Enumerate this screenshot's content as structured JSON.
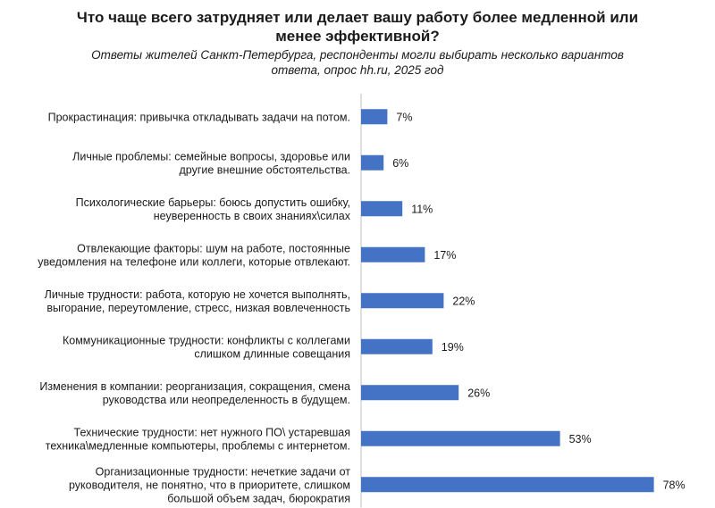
{
  "title_lines": [
    "Что чаще всего затрудняет или делает вашу работу более медленной или",
    "менее эффективной?"
  ],
  "subtitle_lines": [
    "Ответы жителей Санкт-Петербурга, респонденты могли выбирать несколько вариантов",
    "ответа, опрос hh.ru, 2025 год"
  ],
  "colors": {
    "bar": "#4472C4",
    "axis": "#bfbfbf"
  },
  "chart_data": {
    "type": "bar",
    "orientation": "horizontal",
    "title": "Что чаще всего затрудняет или делает вашу работу более медленной или менее эффективной?",
    "subtitle": "Ответы жителей Санкт-Петербурга, респонденты могли выбирать несколько вариантов ответа, опрос hh.ru, 2025 год",
    "value_suffix": "%",
    "xlim": [
      0,
      80
    ],
    "grid": false,
    "legend": "none",
    "categories": [
      [
        "Прокрастинация: привычка откладывать задачи на потом."
      ],
      [
        "Личные проблемы: семейные вопросы, здоровье или",
        "другие внешние обстоятельства."
      ],
      [
        "Психологические барьеры: боюсь допустить ошибку,",
        "неуверенность в своих знаниях\\силах"
      ],
      [
        "Отвлекающие факторы: шум на работе, постоянные",
        "уведомления на телефоне или коллеги, которые отвлекают."
      ],
      [
        "Личные трудности: работа, которую не хочется выполнять,",
        "выгорание, переутомление, стресс, низкая вовлеченность"
      ],
      [
        "Коммуникационные трудности: конфликты с коллегами",
        "слишком длинные совещания"
      ],
      [
        "Изменения в компании: реорганизация, сокращения, смена",
        "руководства или неопределенность в будущем."
      ],
      [
        "Технические трудности: нет нужного ПО\\ устаревшая",
        "техника\\медленные компьютеры, проблемы с интернетом."
      ],
      [
        "Организационные трудности: нечеткие задачи от",
        "руководителя, не понятно, что в приоритете, слишком",
        "большой объем задач, бюрократия"
      ]
    ],
    "values": [
      7,
      6,
      11,
      17,
      22,
      19,
      26,
      53,
      78
    ]
  }
}
